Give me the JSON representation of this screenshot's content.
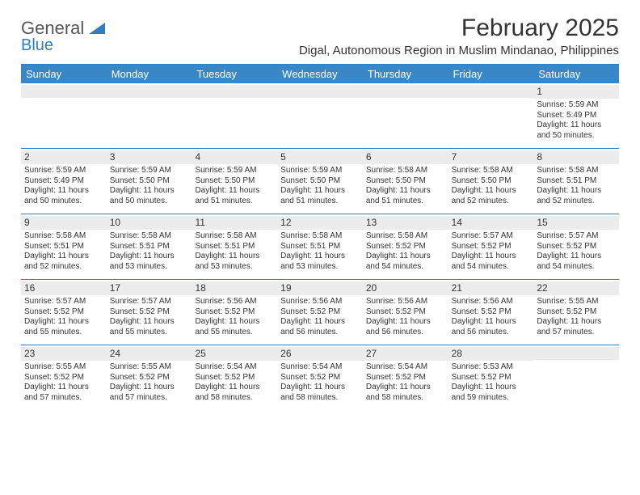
{
  "logo": {
    "line1": "General",
    "line2": "Blue"
  },
  "title": "February 2025",
  "subtitle": "Digal, Autonomous Region in Muslim Mindanao, Philippines",
  "colors": {
    "header_bg": "#3a87c8",
    "header_text": "#ffffff",
    "border": "#2f7ec0",
    "daynum_bg": "#ececec",
    "body_text": "#333333",
    "background": "#ffffff"
  },
  "typography": {
    "title_fontsize": 30,
    "subtitle_fontsize": 15,
    "dayheader_fontsize": 13,
    "cell_fontsize": 10
  },
  "day_labels": [
    "Sunday",
    "Monday",
    "Tuesday",
    "Wednesday",
    "Thursday",
    "Friday",
    "Saturday"
  ],
  "weeks": [
    [
      {
        "empty": true
      },
      {
        "empty": true
      },
      {
        "empty": true
      },
      {
        "empty": true
      },
      {
        "empty": true
      },
      {
        "empty": true
      },
      {
        "num": "1",
        "sunrise": "Sunrise: 5:59 AM",
        "sunset": "Sunset: 5:49 PM",
        "daylight": "Daylight: 11 hours and 50 minutes."
      }
    ],
    [
      {
        "num": "2",
        "sunrise": "Sunrise: 5:59 AM",
        "sunset": "Sunset: 5:49 PM",
        "daylight": "Daylight: 11 hours and 50 minutes."
      },
      {
        "num": "3",
        "sunrise": "Sunrise: 5:59 AM",
        "sunset": "Sunset: 5:50 PM",
        "daylight": "Daylight: 11 hours and 50 minutes."
      },
      {
        "num": "4",
        "sunrise": "Sunrise: 5:59 AM",
        "sunset": "Sunset: 5:50 PM",
        "daylight": "Daylight: 11 hours and 51 minutes."
      },
      {
        "num": "5",
        "sunrise": "Sunrise: 5:59 AM",
        "sunset": "Sunset: 5:50 PM",
        "daylight": "Daylight: 11 hours and 51 minutes."
      },
      {
        "num": "6",
        "sunrise": "Sunrise: 5:58 AM",
        "sunset": "Sunset: 5:50 PM",
        "daylight": "Daylight: 11 hours and 51 minutes."
      },
      {
        "num": "7",
        "sunrise": "Sunrise: 5:58 AM",
        "sunset": "Sunset: 5:50 PM",
        "daylight": "Daylight: 11 hours and 52 minutes."
      },
      {
        "num": "8",
        "sunrise": "Sunrise: 5:58 AM",
        "sunset": "Sunset: 5:51 PM",
        "daylight": "Daylight: 11 hours and 52 minutes."
      }
    ],
    [
      {
        "num": "9",
        "sunrise": "Sunrise: 5:58 AM",
        "sunset": "Sunset: 5:51 PM",
        "daylight": "Daylight: 11 hours and 52 minutes."
      },
      {
        "num": "10",
        "sunrise": "Sunrise: 5:58 AM",
        "sunset": "Sunset: 5:51 PM",
        "daylight": "Daylight: 11 hours and 53 minutes."
      },
      {
        "num": "11",
        "sunrise": "Sunrise: 5:58 AM",
        "sunset": "Sunset: 5:51 PM",
        "daylight": "Daylight: 11 hours and 53 minutes."
      },
      {
        "num": "12",
        "sunrise": "Sunrise: 5:58 AM",
        "sunset": "Sunset: 5:51 PM",
        "daylight": "Daylight: 11 hours and 53 minutes."
      },
      {
        "num": "13",
        "sunrise": "Sunrise: 5:58 AM",
        "sunset": "Sunset: 5:52 PM",
        "daylight": "Daylight: 11 hours and 54 minutes."
      },
      {
        "num": "14",
        "sunrise": "Sunrise: 5:57 AM",
        "sunset": "Sunset: 5:52 PM",
        "daylight": "Daylight: 11 hours and 54 minutes."
      },
      {
        "num": "15",
        "sunrise": "Sunrise: 5:57 AM",
        "sunset": "Sunset: 5:52 PM",
        "daylight": "Daylight: 11 hours and 54 minutes."
      }
    ],
    [
      {
        "num": "16",
        "sunrise": "Sunrise: 5:57 AM",
        "sunset": "Sunset: 5:52 PM",
        "daylight": "Daylight: 11 hours and 55 minutes."
      },
      {
        "num": "17",
        "sunrise": "Sunrise: 5:57 AM",
        "sunset": "Sunset: 5:52 PM",
        "daylight": "Daylight: 11 hours and 55 minutes."
      },
      {
        "num": "18",
        "sunrise": "Sunrise: 5:56 AM",
        "sunset": "Sunset: 5:52 PM",
        "daylight": "Daylight: 11 hours and 55 minutes."
      },
      {
        "num": "19",
        "sunrise": "Sunrise: 5:56 AM",
        "sunset": "Sunset: 5:52 PM",
        "daylight": "Daylight: 11 hours and 56 minutes."
      },
      {
        "num": "20",
        "sunrise": "Sunrise: 5:56 AM",
        "sunset": "Sunset: 5:52 PM",
        "daylight": "Daylight: 11 hours and 56 minutes."
      },
      {
        "num": "21",
        "sunrise": "Sunrise: 5:56 AM",
        "sunset": "Sunset: 5:52 PM",
        "daylight": "Daylight: 11 hours and 56 minutes."
      },
      {
        "num": "22",
        "sunrise": "Sunrise: 5:55 AM",
        "sunset": "Sunset: 5:52 PM",
        "daylight": "Daylight: 11 hours and 57 minutes."
      }
    ],
    [
      {
        "num": "23",
        "sunrise": "Sunrise: 5:55 AM",
        "sunset": "Sunset: 5:52 PM",
        "daylight": "Daylight: 11 hours and 57 minutes."
      },
      {
        "num": "24",
        "sunrise": "Sunrise: 5:55 AM",
        "sunset": "Sunset: 5:52 PM",
        "daylight": "Daylight: 11 hours and 57 minutes."
      },
      {
        "num": "25",
        "sunrise": "Sunrise: 5:54 AM",
        "sunset": "Sunset: 5:52 PM",
        "daylight": "Daylight: 11 hours and 58 minutes."
      },
      {
        "num": "26",
        "sunrise": "Sunrise: 5:54 AM",
        "sunset": "Sunset: 5:52 PM",
        "daylight": "Daylight: 11 hours and 58 minutes."
      },
      {
        "num": "27",
        "sunrise": "Sunrise: 5:54 AM",
        "sunset": "Sunset: 5:52 PM",
        "daylight": "Daylight: 11 hours and 58 minutes."
      },
      {
        "num": "28",
        "sunrise": "Sunrise: 5:53 AM",
        "sunset": "Sunset: 5:52 PM",
        "daylight": "Daylight: 11 hours and 59 minutes."
      },
      {
        "empty": true
      }
    ]
  ]
}
